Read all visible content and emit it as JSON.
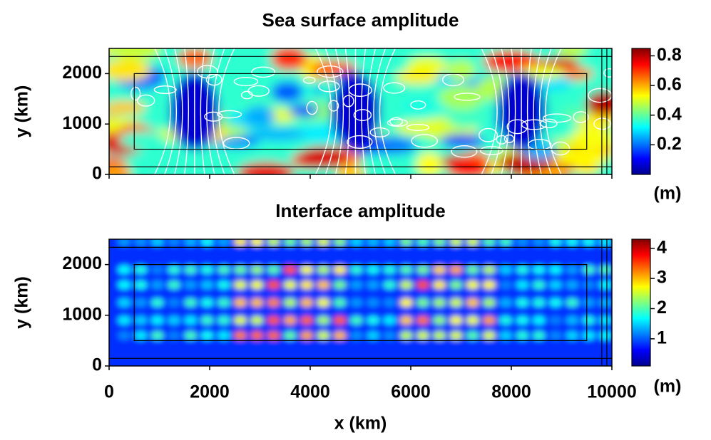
{
  "chart_data": [
    {
      "type": "heatmap",
      "title": "Sea surface amplitude",
      "ylabel": "y (km)",
      "xlim": [
        0,
        10000
      ],
      "xticks": [
        0,
        2000,
        4000,
        6000,
        8000,
        10000
      ],
      "xtick_labels": false,
      "ylim": [
        0,
        2500
      ],
      "yticks": [
        0,
        1000,
        2000
      ],
      "colormap": "jet",
      "clim": [
        0,
        0.85
      ],
      "cticks": [
        0.2,
        0.4,
        0.6,
        0.8
      ],
      "colorbar_label": "(m)",
      "contours": true
    },
    {
      "type": "heatmap",
      "title": "Interface amplitude",
      "ylabel": "y (km)",
      "xlabel": "x (km)",
      "xlim": [
        0,
        10000
      ],
      "xticks": [
        0,
        2000,
        4000,
        6000,
        8000,
        10000
      ],
      "xtick_labels": true,
      "ylim": [
        0,
        2500
      ],
      "yticks": [
        0,
        1000,
        2000
      ],
      "colormap": "jet",
      "clim": [
        0.1,
        4.3
      ],
      "cticks": [
        1,
        2,
        3,
        4
      ],
      "colorbar_label": "(m)",
      "contours": false
    }
  ]
}
